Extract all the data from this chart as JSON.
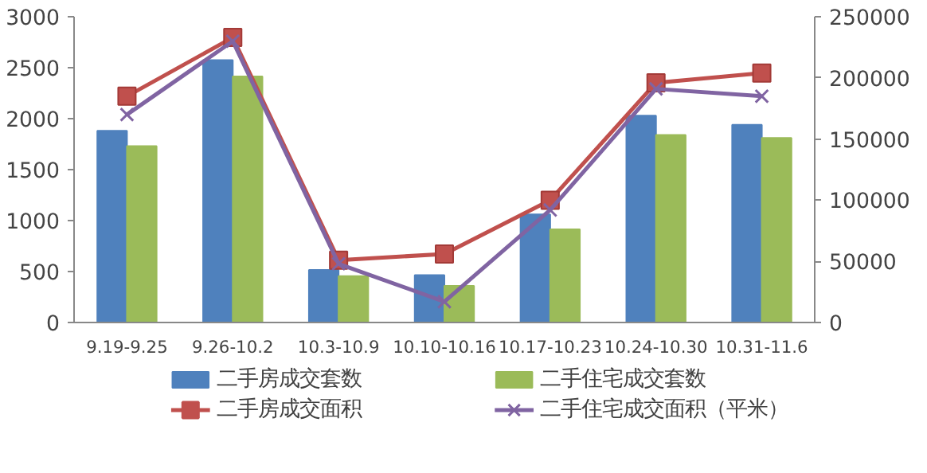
{
  "chart_data": {
    "type": "bar",
    "categories": [
      "9.19-9.25",
      "9.26-10.2",
      "10.3-10.9",
      "10.10-10.16",
      "10.17-10.23",
      "10.24-10.30",
      "10.31-11.6"
    ],
    "series": [
      {
        "name": "二手房成交套数",
        "color": "#4f81bd",
        "values": [
          1880,
          2575,
          515,
          465,
          1060,
          2030,
          1940
        ]
      },
      {
        "name": "二手住宅成交套数",
        "color": "#9bbb59",
        "values": [
          1730,
          2415,
          455,
          360,
          915,
          1840,
          1810
        ]
      },
      {
        "name": "二手房成交面积",
        "type": "line",
        "axis": "y2",
        "marker": "square",
        "color": "#c0504d",
        "values": [
          185000,
          233000,
          51000,
          56000,
          100000,
          196000,
          204000
        ]
      },
      {
        "name": "二手住宅成交面积（平米）",
        "type": "line",
        "axis": "y2",
        "marker": "cross",
        "color": "#8064a2",
        "values": [
          170000,
          230000,
          48000,
          17000,
          92000,
          191000,
          185000
        ]
      }
    ],
    "ylim": [
      0,
      3000
    ],
    "yticks": [
      0,
      500,
      1000,
      1500,
      2000,
      2500,
      3000
    ],
    "y2lim": [
      0,
      250000
    ],
    "y2ticks": [
      0,
      50000,
      100000,
      150000,
      200000,
      250000
    ],
    "grid": false,
    "legend": "bottom"
  }
}
